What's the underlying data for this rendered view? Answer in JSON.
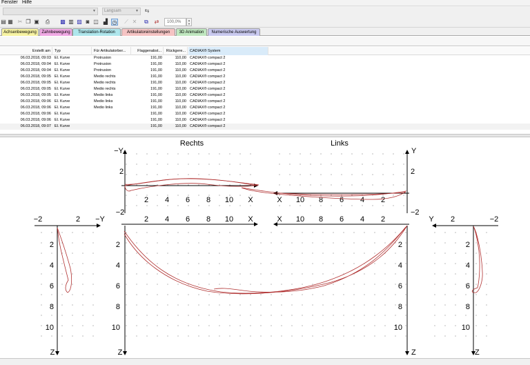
{
  "menu": [
    "Fenster",
    "Hilfe"
  ],
  "combos": [
    {
      "value": ""
    },
    {
      "value": "Langsam"
    }
  ],
  "toolbar": {
    "icons": [
      "save-icon",
      "save-as-icon",
      "cut-icon",
      "copy-icon",
      "paste-icon",
      "print-icon",
      "grid-icon",
      "table-icon",
      "chart-icon",
      "camera-icon",
      "overlay-icon",
      "timer-icon",
      "ruler-icon",
      "cross-icon",
      "select-icon",
      "copy-image-icon",
      "link-icon"
    ],
    "zoom": "100,0%"
  },
  "tabs": [
    {
      "label": "Achsenbewegung",
      "color": "#f7f3a2"
    },
    {
      "label": "Zahnbewegung",
      "color": "#f0a9e4"
    },
    {
      "label": "Translation-Rotation",
      "color": "#aee6ec"
    },
    {
      "label": "Artikulatoreinstellungen",
      "color": "#f5c3c3"
    },
    {
      "label": "3D Animation",
      "color": "#bfe7bf"
    },
    {
      "label": "Numerische Auswertung",
      "color": "#c9c9ef"
    }
  ],
  "table": {
    "columns": [
      "Erstellt am",
      "Typ",
      "Für Artikulatorber...",
      "Flaggenabst...",
      "Rückgere...",
      "CADIAX® System"
    ],
    "rows": [
      [
        "06.03.2018, 09:03",
        "El. Kurve",
        "Protrusion",
        "191,00",
        "110,00",
        "CADIAX® compact 2"
      ],
      [
        "06.03.2018, 09:04",
        "El. Kurve",
        "Protrusion",
        "191,00",
        "110,00",
        "CADIAX® compact 2"
      ],
      [
        "06.03.2018, 09:04",
        "El. Kurve",
        "Protrusion",
        "191,00",
        "110,00",
        "CADIAX® compact 2"
      ],
      [
        "06.03.2018, 09:05",
        "El. Kurve",
        "Medio rechts",
        "191,00",
        "110,00",
        "CADIAX® compact 2"
      ],
      [
        "06.03.2018, 09:05",
        "El. Kurve",
        "Medio rechts",
        "191,00",
        "110,00",
        "CADIAX® compact 2"
      ],
      [
        "06.03.2018, 09:05",
        "El. Kurve",
        "Medio rechts",
        "191,00",
        "110,00",
        "CADIAX® compact 2"
      ],
      [
        "06.03.2018, 09:05",
        "El. Kurve",
        "Medio links",
        "191,00",
        "110,00",
        "CADIAX® compact 2"
      ],
      [
        "06.03.2018, 09:06",
        "El. Kurve",
        "Medio links",
        "191,00",
        "110,00",
        "CADIAX® compact 2"
      ],
      [
        "06.03.2018, 09:06",
        "El. Kurve",
        "Medio links",
        "191,00",
        "110,00",
        "CADIAX® compact 2"
      ],
      [
        "06.03.2018, 09:06",
        "El. Kurve",
        "",
        "191,00",
        "110,00",
        "CADIAX® compact 2"
      ],
      [
        "06.03.2018, 09:06",
        "El. Kurve",
        "",
        "191,00",
        "110,00",
        "CADIAX® compact 2"
      ],
      [
        "06.03.2018, 09:07",
        "El. Kurve",
        "",
        "191,00",
        "110,00",
        "CADIAX® compact 2"
      ]
    ]
  },
  "plots": {
    "title_right": "Rechts",
    "title_left": "Links",
    "axis_minus_y": "−Y",
    "axis_y": "Y",
    "axis_x": "X",
    "axis_z": "Z",
    "tick_2": "2",
    "tick_minus_2": "−2",
    "x_ticks": [
      "2",
      "4",
      "6",
      "8",
      "10"
    ],
    "z_ticks": [
      "2",
      "4",
      "6",
      "8",
      "10"
    ],
    "curve_color": "#b03030"
  }
}
